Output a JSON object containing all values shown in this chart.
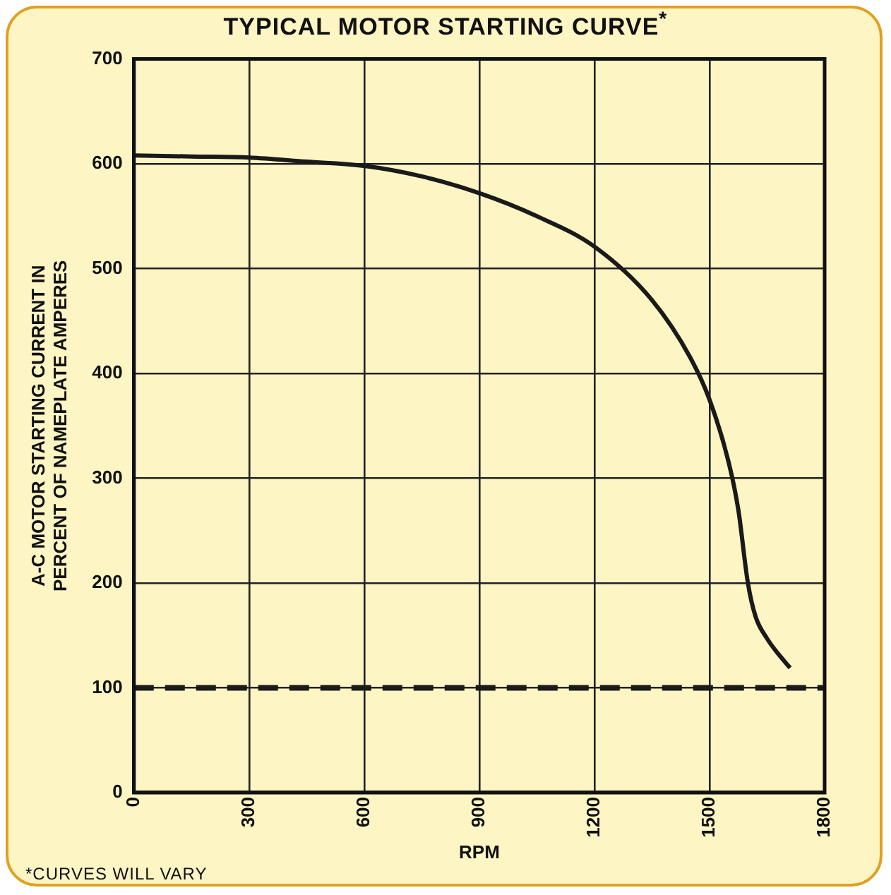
{
  "chart_data": {
    "type": "line",
    "title": "TYPICAL MOTOR STARTING CURVE$^{*}$",
    "xlabel": "RPM",
    "ylabel": "A-C MOTOR STARTING CURRENT IN PERCENT OF NAMEPLATE AMPERES",
    "annotations": [
      "*CURVES WILL VARY"
    ],
    "x": [
      0,
      150,
      300,
      450,
      600,
      750,
      900,
      1050,
      1200,
      1350,
      1450,
      1500,
      1550,
      1575,
      1600,
      1620,
      1650,
      1680,
      1710
    ],
    "series": [
      {
        "color": "#1a1a1a",
        "values": [
          608,
          607,
          606,
          602,
          598,
          588,
          572,
          550,
          521,
          470,
          415,
          375,
          315,
          270,
          200,
          168,
          147,
          132,
          119
        ]
      }
    ],
    "xlim": [
      0,
      1800
    ],
    "xticks": [
      0,
      300,
      600,
      900,
      1200,
      1500,
      1800
    ],
    "ylim": [
      0,
      700
    ],
    "yticks": [
      0,
      100,
      200,
      300,
      400,
      500,
      600,
      700
    ],
    "grid": true,
    "legend": false,
    "marker": "none",
    "line_style": "solid",
    "ref_lines": [
      {
        "axis": "y",
        "value": 100,
        "color": "#1a1a1a",
        "line_style": "dashed"
      }
    ]
  }
}
